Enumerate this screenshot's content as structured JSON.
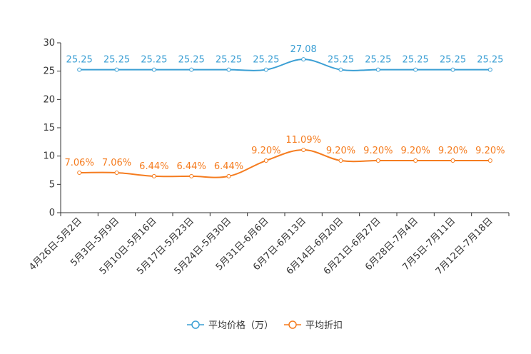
{
  "chart_data": {
    "type": "line",
    "title": "",
    "xlabel": "",
    "ylabel": "",
    "ylim": [
      0,
      30
    ],
    "yticks": [
      0,
      5,
      10,
      15,
      20,
      25,
      30
    ],
    "categories": [
      "4月26日-5月2日",
      "5月3日-5月9日",
      "5月10日-5月16日",
      "5月17日-5月23日",
      "5月24日-5月30日",
      "5月31日-6月6日",
      "6月7日-6月13日",
      "6月14日-6月20日",
      "6月21日-6月27日",
      "6月28日-7月4日",
      "7月5日-7月11日",
      "7月12日-7月18日"
    ],
    "legend_position": "bottom",
    "series": [
      {
        "name": "平均价格（万）",
        "color": "#3b9fd4",
        "values": [
          25.25,
          25.25,
          25.25,
          25.25,
          25.25,
          25.25,
          27.08,
          25.25,
          25.25,
          25.25,
          25.25,
          25.25
        ],
        "labels": [
          "25.25",
          "25.25",
          "25.25",
          "25.25",
          "25.25",
          "25.25",
          "27.08",
          "25.25",
          "25.25",
          "25.25",
          "25.25",
          "25.25"
        ]
      },
      {
        "name": "平均折扣",
        "color": "#f57c1f",
        "values": [
          7.06,
          7.06,
          6.44,
          6.44,
          6.44,
          9.2,
          11.09,
          9.2,
          9.2,
          9.2,
          9.2,
          9.2
        ],
        "labels": [
          "7.06%",
          "7.06%",
          "6.44%",
          "6.44%",
          "6.44%",
          "9.20%",
          "11.09%",
          "9.20%",
          "9.20%",
          "9.20%",
          "9.20%",
          "9.20%"
        ]
      }
    ]
  }
}
